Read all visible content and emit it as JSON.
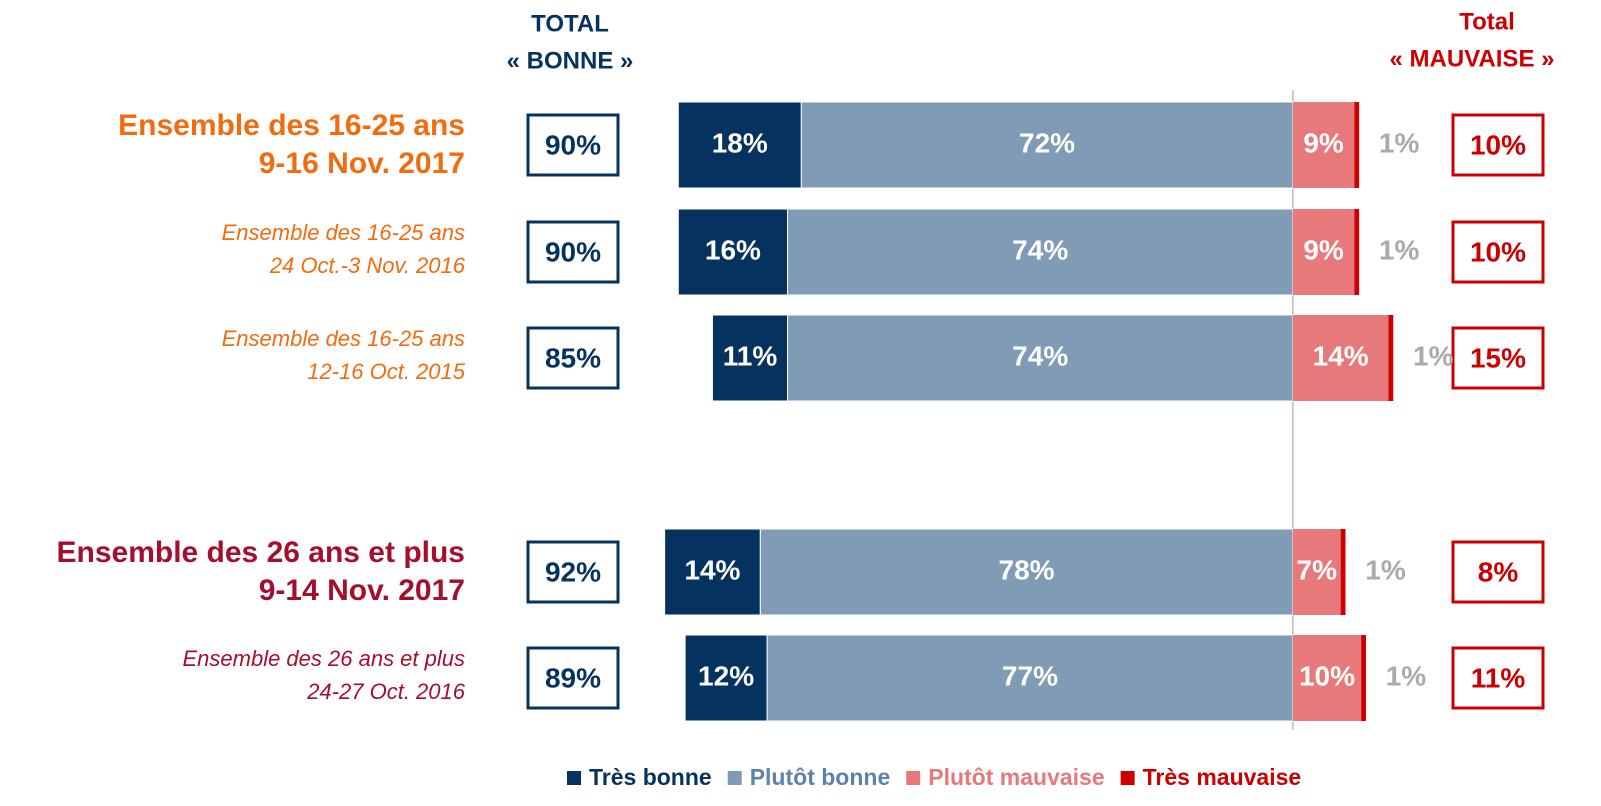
{
  "chart_data": {
    "type": "diverging-bar",
    "categories": [
      [
        "Ensemble des 16-25 ans",
        "9-16 Nov. 2017"
      ],
      [
        "Ensemble des 16-25 ans",
        "24 Oct.-3 Nov. 2016"
      ],
      [
        "Ensemble des 16-25 ans",
        "12-16 Oct. 2015"
      ],
      [
        "Ensemble des 26 ans et plus",
        "9-14 Nov. 2017"
      ],
      [
        "Ensemble des 26 ans et plus",
        "24-27 Oct. 2016"
      ]
    ],
    "category_colors": [
      "#f26b0f",
      "#f26b0f",
      "#f26b0f",
      "#a50f2d",
      "#a50f2d"
    ],
    "category_styles": [
      "bold",
      "italic",
      "italic",
      "bold",
      "italic"
    ],
    "series": [
      {
        "name": "Très bonne",
        "color": "#06325f",
        "side": "negative",
        "values": [
          18,
          16,
          11,
          14,
          12
        ],
        "value_labels": [
          "18%",
          "16%",
          "11%",
          "14%",
          "12%"
        ]
      },
      {
        "name": "Plutôt bonne",
        "color": "#7f9bb5",
        "side": "negative",
        "values": [
          72,
          74,
          74,
          78,
          77
        ],
        "value_labels": [
          "72%",
          "74%",
          "74%",
          "78%",
          "77%"
        ]
      },
      {
        "name": "Plutôt mauvaise",
        "color": "#e8797a",
        "side": "positive",
        "values": [
          9,
          9,
          14,
          7,
          10
        ],
        "value_labels": [
          "9%",
          "9%",
          "14%",
          "7%",
          "10%"
        ]
      },
      {
        "name": "Très mauvaise",
        "color": "#cc0000",
        "side": "positive",
        "values": [
          1,
          1,
          1,
          1,
          1
        ],
        "value_labels": [
          "1%",
          "1%",
          "1%",
          "1%",
          "1%"
        ]
      }
    ],
    "total_left": {
      "header": [
        "TOTAL",
        "« BONNE »"
      ],
      "color": "#06325f",
      "values": [
        90,
        90,
        85,
        92,
        89
      ],
      "value_labels": [
        "90%",
        "90%",
        "85%",
        "92%",
        "89%"
      ]
    },
    "total_right": {
      "header": [
        "Total",
        "« MAUVAISE »"
      ],
      "color": "#cc0000",
      "values": [
        10,
        10,
        15,
        8,
        11
      ],
      "value_labels": [
        "10%",
        "10%",
        "15%",
        "8%",
        "11%"
      ]
    },
    "xlim": [
      -100,
      40
    ],
    "legend": "bottom"
  }
}
